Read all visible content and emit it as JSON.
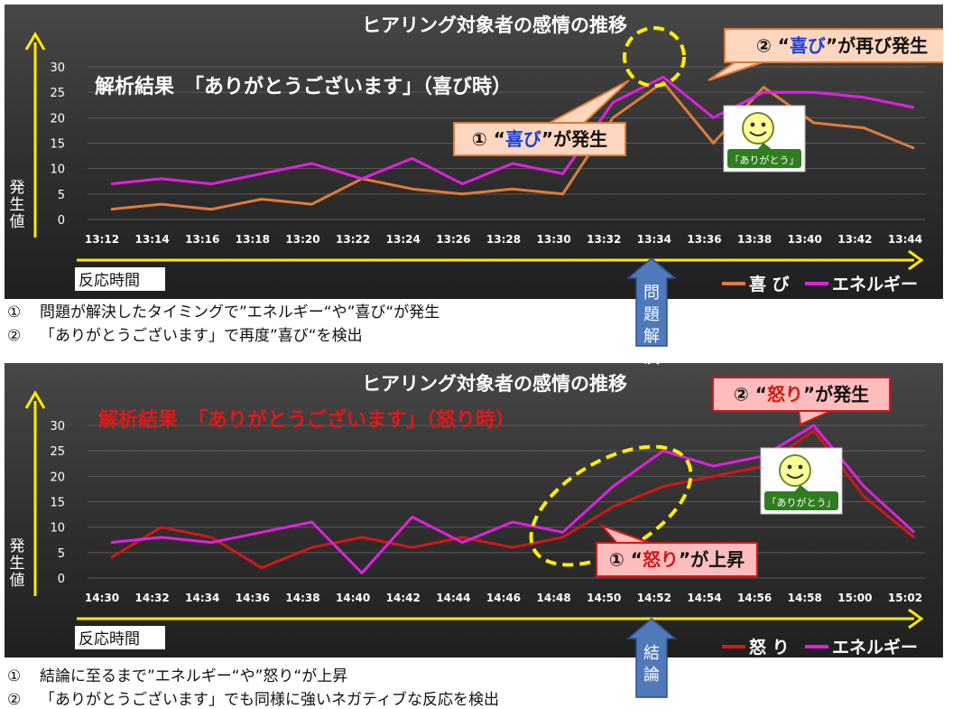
{
  "chart_data": [
    {
      "type": "line",
      "title": "ヒアリング対象者の感情の推移",
      "subtitle": "解析結果　「ありがとうございます」（喜び時）",
      "xlabel": "反応時間",
      "ylabel": "発生値",
      "ylim": [
        0,
        30
      ],
      "yticks": [
        0,
        5,
        10,
        15,
        20,
        25,
        30
      ],
      "categories": [
        "13:12",
        "13:14",
        "13:16",
        "13:18",
        "13:20",
        "13:22",
        "13:24",
        "13:26",
        "13:28",
        "13:30",
        "13:32",
        "13:34",
        "13:36",
        "13:38",
        "13:40",
        "13:42",
        "13:44"
      ],
      "series": [
        {
          "name": "喜 び",
          "color": "#e07b39",
          "values": [
            2,
            3,
            2,
            4,
            3,
            8,
            6,
            5,
            6,
            5,
            20,
            27,
            15,
            26,
            19,
            18,
            14
          ]
        },
        {
          "name": "エネルギー",
          "color": "#e020e0",
          "values": [
            7,
            8,
            7,
            9,
            11,
            8,
            12,
            7,
            11,
            9,
            23,
            28,
            20,
            25,
            25,
            24,
            22
          ]
        }
      ],
      "legend_position": "bottom-right",
      "grid": true,
      "callouts": [
        {
          "prefix": "① “",
          "key": "喜び",
          "suffix": "”が発生"
        },
        {
          "prefix": "② “",
          "key": "喜び",
          "suffix": "”が再び発生"
        }
      ],
      "marker_label": "問題解決",
      "stamp_label": "「ありがとう」"
    },
    {
      "type": "line",
      "title": "ヒアリング対象者の感情の推移",
      "subtitle": "解析結果　「ありがとうございます」（怒り時）",
      "xlabel": "反応時間",
      "ylabel": "発生値",
      "ylim": [
        0,
        30
      ],
      "yticks": [
        0,
        5,
        10,
        15,
        20,
        25,
        30
      ],
      "categories": [
        "14:30",
        "14:32",
        "14:34",
        "14:36",
        "14:38",
        "14:40",
        "14:42",
        "14:44",
        "14:46",
        "14:48",
        "14:50",
        "14:52",
        "14:54",
        "14:56",
        "14:58",
        "15:00",
        "15:02"
      ],
      "series": [
        {
          "name": "怒 り",
          "color": "#d01818",
          "values": [
            4,
            10,
            8,
            2,
            6,
            8,
            6,
            8,
            6,
            8,
            14,
            18,
            20,
            22,
            29,
            16,
            8
          ]
        },
        {
          "name": "エネルギー",
          "color": "#e020e0",
          "values": [
            7,
            8,
            7,
            9,
            11,
            1,
            12,
            7,
            11,
            9,
            18,
            25,
            22,
            24,
            30,
            18,
            9
          ]
        }
      ],
      "legend_position": "bottom-right",
      "grid": true,
      "callouts": [
        {
          "prefix": "① “",
          "key": "怒り",
          "suffix": "”が上昇"
        },
        {
          "prefix": "② “",
          "key": "怒り",
          "suffix": "”が発生"
        }
      ],
      "marker_label": "結論",
      "stamp_label": "「ありがとう」"
    }
  ],
  "notes": {
    "top": [
      {
        "num": "①",
        "text": "問題が解決したタイミングで”エネルギー“や”喜び“が発生"
      },
      {
        "num": "②",
        "text": "「ありがとうございます」で再度”喜び“を検出"
      }
    ],
    "bottom": [
      {
        "num": "①",
        "text": "結論に至るまで”エネルギー“や”怒り“が上昇"
      },
      {
        "num": "②",
        "text": "「ありがとうございます」でも同様に強いネガティブな反応を検出"
      }
    ]
  }
}
